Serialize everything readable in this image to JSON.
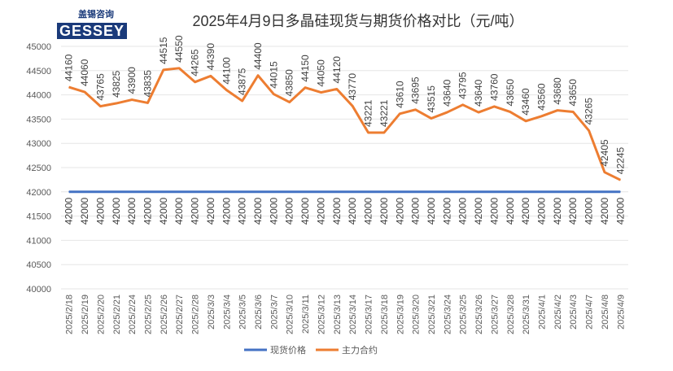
{
  "chart_data": {
    "type": "line",
    "title": "2025年4月9日多晶硅现货与期货价格对比（元/吨）",
    "logo": {
      "cn": "盖锡咨询",
      "en": "GESSEY"
    },
    "ylim": [
      40000,
      45000
    ],
    "yticks": [
      40000,
      40500,
      41000,
      41500,
      42000,
      42500,
      43000,
      43500,
      44000,
      44500,
      45000
    ],
    "grid": true,
    "legend_position": "bottom",
    "categories": [
      "2025/2/18",
      "2025/2/19",
      "2025/2/20",
      "2025/2/21",
      "2025/2/24",
      "2025/2/25",
      "2025/2/26",
      "2025/2/27",
      "2025/2/28",
      "2025/3/3",
      "2025/3/4",
      "2025/3/5",
      "2025/3/6",
      "2025/3/7",
      "2025/3/10",
      "2025/3/11",
      "2025/3/12",
      "2025/3/13",
      "2025/3/14",
      "2025/3/17",
      "2025/3/18",
      "2025/3/19",
      "2025/3/20",
      "2025/3/21",
      "2025/3/24",
      "2025/3/25",
      "2025/3/26",
      "2025/3/27",
      "2025/3/28",
      "2025/3/31",
      "2025/4/1",
      "2025/4/2",
      "2025/4/3",
      "2025/4/7",
      "2025/4/8",
      "2025/4/9"
    ],
    "series": [
      {
        "name": "现货价格",
        "color": "#4472C4",
        "values": [
          42000,
          42000,
          42000,
          42000,
          42000,
          42000,
          42000,
          42000,
          42000,
          42000,
          42000,
          42000,
          42000,
          42000,
          42000,
          42000,
          42000,
          42000,
          42000,
          42000,
          42000,
          42000,
          42000,
          42000,
          42000,
          42000,
          42000,
          42000,
          42000,
          42000,
          42000,
          42000,
          42000,
          42000,
          42000,
          42000
        ]
      },
      {
        "name": "主力合约",
        "color": "#ED7D31",
        "values": [
          44160,
          44060,
          43765,
          43825,
          43900,
          43835,
          44515,
          44550,
          44265,
          44390,
          44100,
          43875,
          44400,
          44015,
          43850,
          44150,
          44050,
          44120,
          43770,
          43221,
          43221,
          43610,
          43695,
          43515,
          43640,
          43795,
          43640,
          43760,
          43650,
          43460,
          43560,
          43680,
          43650,
          43265,
          42405,
          42245
        ]
      }
    ]
  }
}
